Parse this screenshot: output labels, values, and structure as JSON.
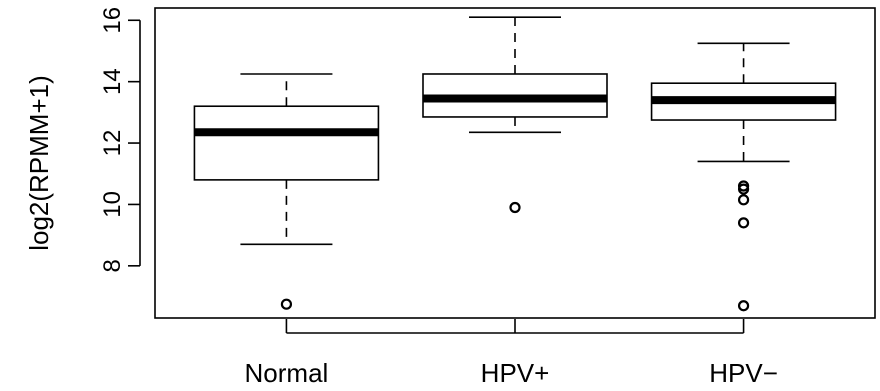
{
  "chart_data": {
    "type": "box",
    "title": "",
    "xlabel": "",
    "ylabel": "log2(RPMM+1)",
    "yticks": [
      8,
      10,
      12,
      14,
      16
    ],
    "ylim": [
      6.3,
      16.4
    ],
    "grid": false,
    "legend": "none",
    "categories": [
      "Normal",
      "HPV+",
      "HPV−"
    ],
    "boxes": [
      {
        "category": "Normal",
        "whisker_low": 8.7,
        "q1": 10.8,
        "median": 12.35,
        "q3": 13.2,
        "whisker_high": 14.25,
        "outliers": [
          6.75
        ]
      },
      {
        "category": "HPV+",
        "whisker_low": 12.35,
        "q1": 12.85,
        "median": 13.45,
        "q3": 14.25,
        "whisker_high": 16.1,
        "outliers": [
          9.9
        ]
      },
      {
        "category": "HPV−",
        "whisker_low": 11.4,
        "q1": 12.75,
        "median": 13.4,
        "q3": 13.95,
        "whisker_high": 15.25,
        "outliers": [
          10.6,
          10.5,
          10.15,
          9.4,
          6.7
        ]
      }
    ]
  }
}
